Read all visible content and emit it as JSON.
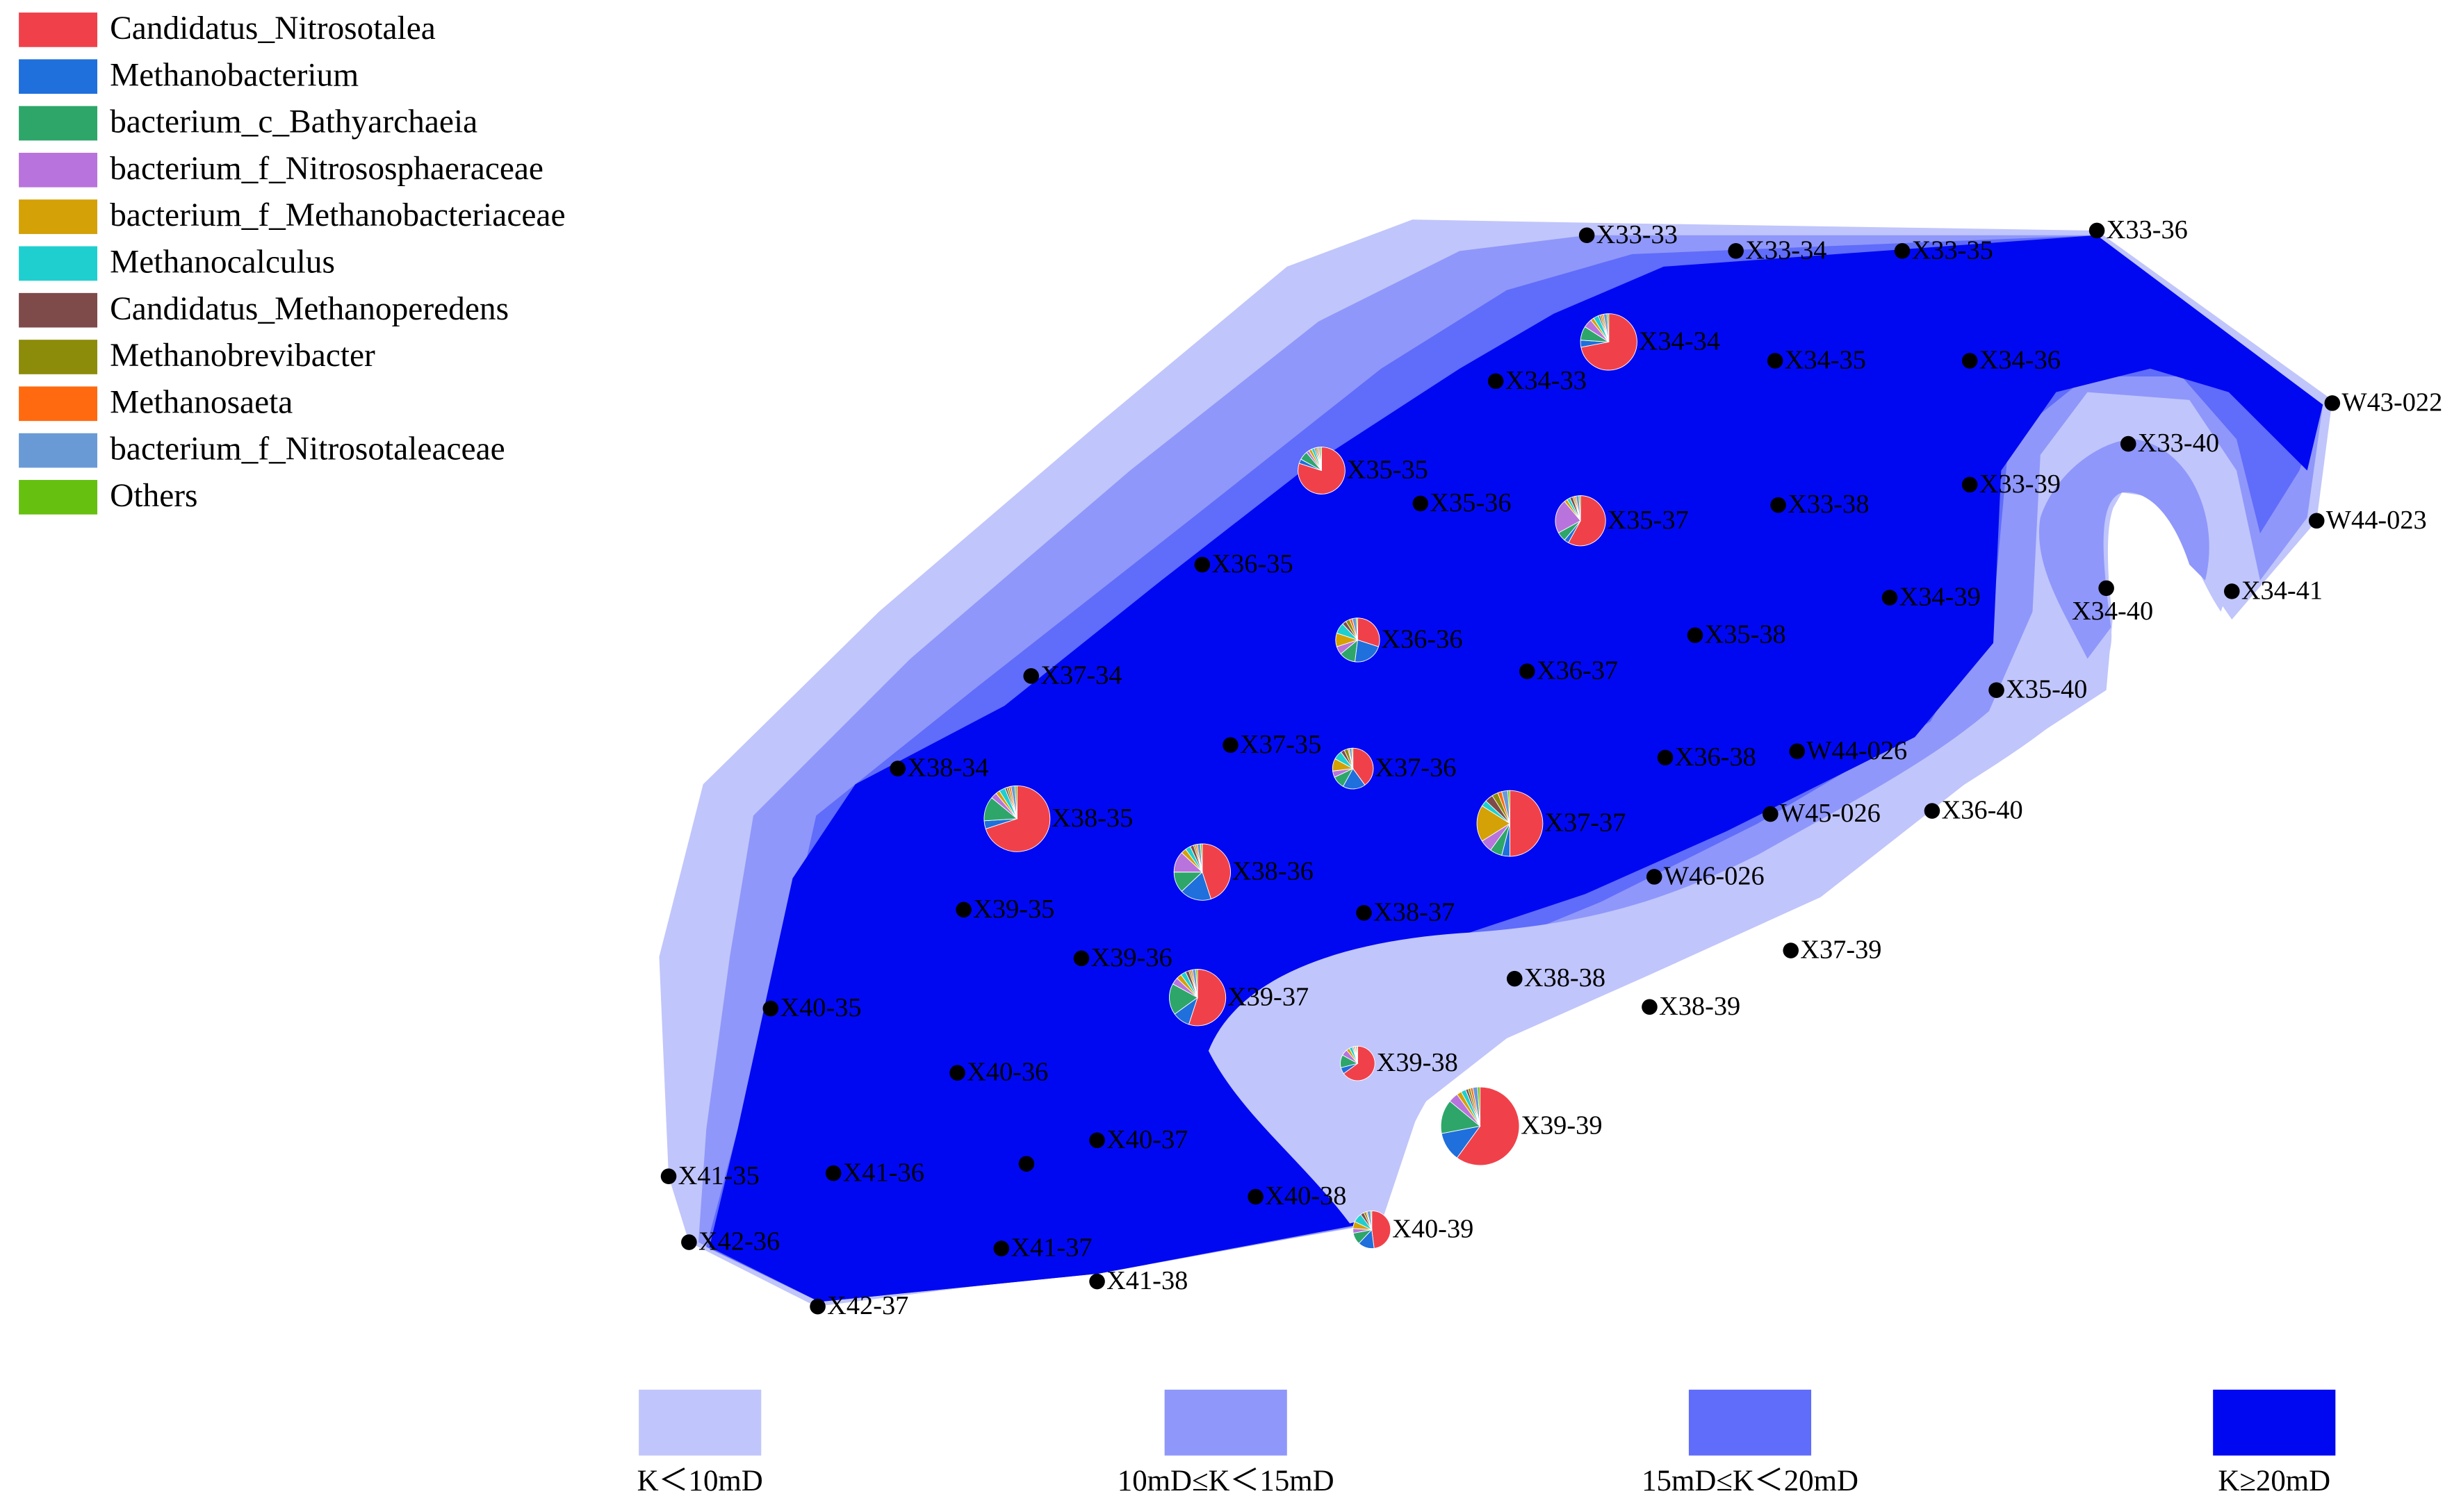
{
  "legend": {
    "items": [
      {
        "name": "Candidatus_Nitrosotalea",
        "color": "#f0414a"
      },
      {
        "name": "Methanobacterium",
        "color": "#1f6fdc"
      },
      {
        "name": "bacterium_c_Bathyarchaeia",
        "color": "#2ea66a"
      },
      {
        "name": "bacterium_f_Nitrososphaeraceae",
        "color": "#b873dc"
      },
      {
        "name": "bacterium_f_Methanobacteriaceae",
        "color": "#d4a106"
      },
      {
        "name": "Methanocalculus",
        "color": "#1fcfcf"
      },
      {
        "name": "Candidatus_Methanoperedens",
        "color": "#7f4a4a"
      },
      {
        "name": "Methanobrevibacter",
        "color": "#8c8c0a"
      },
      {
        "name": "Methanosaeta",
        "color": "#ff6a10"
      },
      {
        "name": "bacterium_f_Nitrosotaleaceae",
        "color": "#6a9ad6"
      },
      {
        "name": "Others",
        "color": "#66c010"
      }
    ]
  },
  "zones": {
    "items": [
      {
        "label": "K＜10mD",
        "color": "#c0c5fb"
      },
      {
        "label": "10mD≤K＜15mD",
        "color": "#8f97fa"
      },
      {
        "label": "15mD≤K＜20mD",
        "color": "#606cfa"
      },
      {
        "label": "K≥20mD",
        "color": "#0008f2"
      }
    ]
  },
  "wells": [
    {
      "label": "X33-33"
    },
    {
      "label": "X33-34"
    },
    {
      "label": "X33-35"
    },
    {
      "label": "X33-36"
    },
    {
      "label": "X34-33"
    },
    {
      "label": "X34-34",
      "pie": [
        72,
        4,
        8,
        5,
        2,
        3,
        1,
        1,
        1,
        2,
        1
      ]
    },
    {
      "label": "X34-35"
    },
    {
      "label": "X34-36"
    },
    {
      "label": "W43-022"
    },
    {
      "label": "X33-40"
    },
    {
      "label": "W44-023"
    },
    {
      "label": "X35-35",
      "pie": [
        80,
        3,
        6,
        2,
        2,
        2,
        1,
        1,
        1,
        1,
        1
      ]
    },
    {
      "label": "X35-36"
    },
    {
      "label": "X35-37",
      "pie": [
        58,
        3,
        6,
        22,
        2,
        2,
        2,
        1,
        1,
        2,
        1
      ]
    },
    {
      "label": "X33-38"
    },
    {
      "label": "X33-39"
    },
    {
      "label": "X34-40"
    },
    {
      "label": "X34-41"
    },
    {
      "label": "X36-35"
    },
    {
      "label": "X34-39"
    },
    {
      "label": "X36-36",
      "pie": [
        30,
        22,
        12,
        6,
        10,
        8,
        3,
        3,
        2,
        3,
        1
      ]
    },
    {
      "label": "X35-38"
    },
    {
      "label": "X37-34"
    },
    {
      "label": "X36-37"
    },
    {
      "label": "X35-40"
    },
    {
      "label": "X37-35"
    },
    {
      "label": "X37-36",
      "pie": [
        40,
        18,
        10,
        5,
        10,
        7,
        3,
        3,
        1,
        2,
        1
      ]
    },
    {
      "label": "X36-38"
    },
    {
      "label": "W44-026"
    },
    {
      "label": "X38-34"
    },
    {
      "label": "X38-35",
      "pie": [
        70,
        4,
        12,
        3,
        2,
        3,
        1,
        1,
        1,
        2,
        1
      ]
    },
    {
      "label": "X37-37",
      "pie": [
        50,
        4,
        6,
        6,
        18,
        3,
        4,
        3,
        2,
        3,
        1
      ]
    },
    {
      "label": "W45-026"
    },
    {
      "label": "X36-40"
    },
    {
      "label": "X38-36",
      "pie": [
        45,
        18,
        12,
        12,
        3,
        3,
        2,
        1,
        1,
        2,
        1
      ]
    },
    {
      "label": "W46-026"
    },
    {
      "label": "X39-35"
    },
    {
      "label": "X38-37"
    },
    {
      "label": "X39-36"
    },
    {
      "label": "X37-39"
    },
    {
      "label": "X38-38"
    },
    {
      "label": "X39-37",
      "pie": [
        55,
        10,
        18,
        4,
        3,
        3,
        2,
        1,
        1,
        2,
        1
      ]
    },
    {
      "label": "X38-39"
    },
    {
      "label": "X40-35"
    },
    {
      "label": "X40-36"
    },
    {
      "label": "X39-38",
      "pie": [
        65,
        6,
        12,
        6,
        3,
        3,
        1,
        1,
        1,
        1,
        1
      ]
    },
    {
      "label": "X39-39",
      "pie": [
        60,
        12,
        14,
        4,
        2,
        2,
        1,
        1,
        1,
        2,
        1
      ]
    },
    {
      "label": "X40-37"
    },
    {
      "label": "X41-35"
    },
    {
      "label": "X41-36"
    },
    {
      "label": "X40-38"
    },
    {
      "label": "X40-39",
      "pie": [
        48,
        14,
        10,
        4,
        6,
        8,
        3,
        2,
        1,
        3,
        1
      ]
    },
    {
      "label": "X42-36"
    },
    {
      "label": "X41-37"
    },
    {
      "label": "X41-38"
    },
    {
      "label": "X42-37"
    }
  ]
}
